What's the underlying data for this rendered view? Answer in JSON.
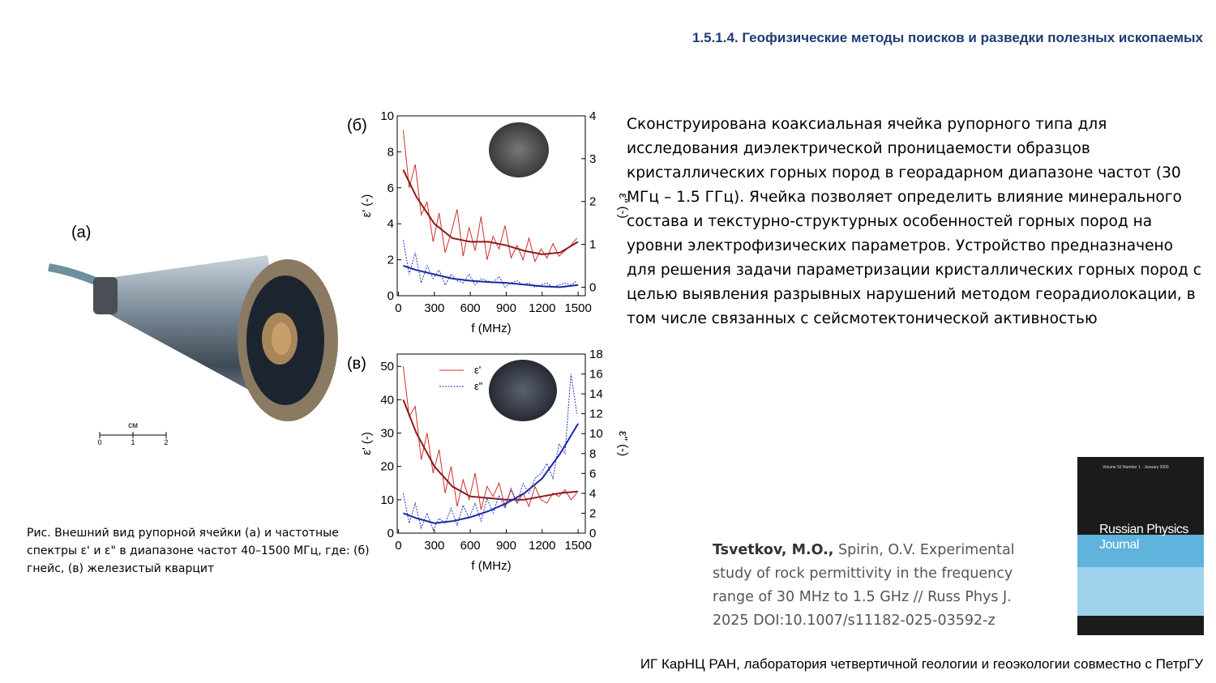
{
  "header": {
    "title": "1.5.1.4. Геофизические методы поисков и разведки полезных ископаемых"
  },
  "photo": {
    "label": "(а)",
    "scale_unit": "см",
    "scale_ticks": [
      "0",
      "1",
      "2"
    ]
  },
  "chart_data": [
    {
      "type": "line",
      "title": "(б)",
      "x_label": "f (MHz)",
      "y_label": "ε' (-)",
      "y2_label": "ε\" (-)",
      "xlim": [
        -10,
        1560
      ],
      "xticks": [
        0,
        300,
        600,
        900,
        1200,
        1500
      ],
      "ylim": [
        0,
        10
      ],
      "yticks": [
        0,
        2,
        4,
        6,
        8,
        10
      ],
      "y2lim": [
        -0.2,
        4
      ],
      "y2ticks": [
        0,
        1,
        2,
        3,
        4
      ],
      "legend": false,
      "series": [
        {
          "color": "#d0302a",
          "linewidth": 1,
          "linestyle": "solid",
          "x": [
            40,
            90,
            140,
            190,
            240,
            290,
            340,
            390,
            440,
            490,
            540,
            590,
            640,
            690,
            740,
            790,
            840,
            890,
            940,
            990,
            1040,
            1090,
            1140,
            1190,
            1240,
            1290,
            1340,
            1390,
            1440,
            1490
          ],
          "values": [
            9.2,
            6.0,
            7.3,
            4.5,
            5.2,
            3.0,
            4.6,
            2.4,
            3.5,
            4.8,
            2.2,
            3.8,
            2.5,
            4.4,
            2.0,
            3.3,
            2.6,
            3.9,
            2.1,
            2.8,
            2.0,
            3.2,
            1.9,
            2.6,
            2.1,
            2.9,
            2.2,
            2.5,
            2.8,
            3.2
          ]
        },
        {
          "color": "#8b1a1a",
          "linewidth": 2,
          "linestyle": "solid",
          "x": [
            40,
            150,
            300,
            450,
            600,
            750,
            900,
            1050,
            1200,
            1350,
            1500
          ],
          "values": [
            7.0,
            5.5,
            4.0,
            3.2,
            3.0,
            3.0,
            2.8,
            2.5,
            2.3,
            2.4,
            3.0
          ]
        },
        {
          "color": "#2233cc",
          "linewidth": 1,
          "linestyle": "dotted",
          "axis": "y2",
          "x": [
            40,
            90,
            140,
            190,
            240,
            290,
            340,
            390,
            440,
            490,
            540,
            590,
            640,
            690,
            740,
            790,
            840,
            890,
            940,
            990,
            1040,
            1090,
            1140,
            1190,
            1240,
            1290,
            1340,
            1390,
            1440,
            1490
          ],
          "values": [
            1.1,
            0.3,
            0.8,
            0.1,
            0.5,
            0.2,
            0.4,
            0.05,
            0.3,
            0.15,
            0.1,
            0.3,
            0.05,
            0.2,
            0.15,
            0.1,
            0.25,
            0.0,
            0.1,
            0.15,
            0.05,
            0.1,
            0.0,
            0.05,
            0.1,
            0.0,
            0.05,
            0.1,
            0.05,
            0.15
          ]
        },
        {
          "color": "#1a2aa0",
          "linewidth": 2,
          "linestyle": "solid",
          "axis": "y2",
          "x": [
            40,
            150,
            300,
            450,
            600,
            750,
            900,
            1050,
            1200,
            1350,
            1500
          ],
          "values": [
            0.5,
            0.4,
            0.3,
            0.2,
            0.15,
            0.12,
            0.1,
            0.06,
            0.02,
            0.0,
            0.05
          ]
        }
      ]
    },
    {
      "type": "line",
      "title": "(в)",
      "x_label": "f (MHz)",
      "y_label": "ε' (-)",
      "y2_label": "ε\" (-)",
      "xlim": [
        -10,
        1560
      ],
      "xticks": [
        0,
        300,
        600,
        900,
        1200,
        1500
      ],
      "ylim": [
        0,
        53.7
      ],
      "yticks": [
        0,
        10,
        20,
        30,
        40,
        50
      ],
      "y2lim": [
        0,
        18
      ],
      "y2ticks": [
        0,
        2,
        4,
        6,
        8,
        10,
        12,
        14,
        16,
        18
      ],
      "legend": true,
      "series": [
        {
          "name": "ε'",
          "color": "#d0302a",
          "linewidth": 1,
          "linestyle": "solid",
          "x": [
            40,
            90,
            140,
            190,
            240,
            290,
            340,
            390,
            440,
            490,
            540,
            590,
            640,
            690,
            740,
            790,
            840,
            890,
            940,
            990,
            1040,
            1090,
            1140,
            1190,
            1240,
            1290,
            1340,
            1390,
            1440,
            1490
          ],
          "values": [
            50,
            35,
            38,
            22,
            30,
            18,
            25,
            12,
            20,
            8,
            16,
            10,
            18,
            7,
            14,
            11,
            15,
            8,
            13,
            9,
            12,
            8,
            14,
            10,
            9,
            12,
            11,
            13,
            10,
            12
          ]
        },
        {
          "color": "#8b1a1a",
          "linewidth": 2,
          "linestyle": "solid",
          "x": [
            40,
            150,
            300,
            450,
            600,
            750,
            900,
            1050,
            1200,
            1350,
            1500
          ],
          "values": [
            40,
            30,
            20,
            14,
            11,
            10.5,
            10,
            10,
            11,
            12,
            12.5
          ]
        },
        {
          "name": "ε\"",
          "color": "#2233cc",
          "linewidth": 1,
          "linestyle": "dotted",
          "axis": "y2",
          "x": [
            40,
            90,
            140,
            190,
            240,
            290,
            340,
            390,
            440,
            490,
            540,
            590,
            640,
            690,
            740,
            790,
            840,
            890,
            940,
            990,
            1040,
            1090,
            1140,
            1190,
            1240,
            1290,
            1340,
            1390,
            1440,
            1490
          ],
          "values": [
            4,
            1,
            3,
            0.5,
            2,
            0.3,
            1.5,
            1,
            2.5,
            0.8,
            2.8,
            1.5,
            3,
            1.2,
            3.5,
            2,
            3.8,
            2.5,
            4.5,
            3,
            5,
            4,
            5.5,
            6,
            7,
            5.5,
            9,
            8,
            16,
            12
          ]
        },
        {
          "color": "#1a2aa0",
          "linewidth": 2,
          "linestyle": "solid",
          "axis": "y2",
          "x": [
            40,
            150,
            300,
            450,
            600,
            750,
            900,
            1050,
            1200,
            1350,
            1500
          ],
          "values": [
            2,
            1.5,
            1.0,
            1.2,
            1.6,
            2.2,
            3.0,
            4.0,
            5.5,
            8,
            11
          ]
        }
      ]
    }
  ],
  "description": "Сконструирована коаксиальная ячейка рупорного типа для исследования диэлектрической проницаемости образцов кристаллических горных пород в георадарном диапазоне частот (30 МГц – 1.5 ГГц). Ячейка позволяет определить влияние минерального состава и текстурно-структурных особенностей горных пород на уровни электрофизических параметров. Устройство предназначено для решения задачи параметризации кристаллических горных пород с целью выявления разрывных нарушений методом георадиолокации, в том числе связанных с сейсмотектонической активностью",
  "caption": "Рис. Внешний вид рупорной ячейки (а) и частотные спектры ε' и ε\" в диапазоне частот 40–1500 МГц, где: (б) гнейс, (в) железистый кварцит",
  "reference": {
    "lead_author": "Tsvetkov, M.O.,",
    "text": "Spirin, O.V. Experimental study of rock permittivity in the frequency range of 30 MHz to 1.5 GHz // Russ Phys J. 2025 DOI:10.1007/s11182-025-03592-z"
  },
  "journal_cover": {
    "issue": "Volume 52 Number 1 - January 2009",
    "title": "Russian Physics Journal"
  },
  "footer": "ИГ КарНЦ РАН, лаборатория четвертичной геологии и геоэкологии совместно с ПетрГУ"
}
